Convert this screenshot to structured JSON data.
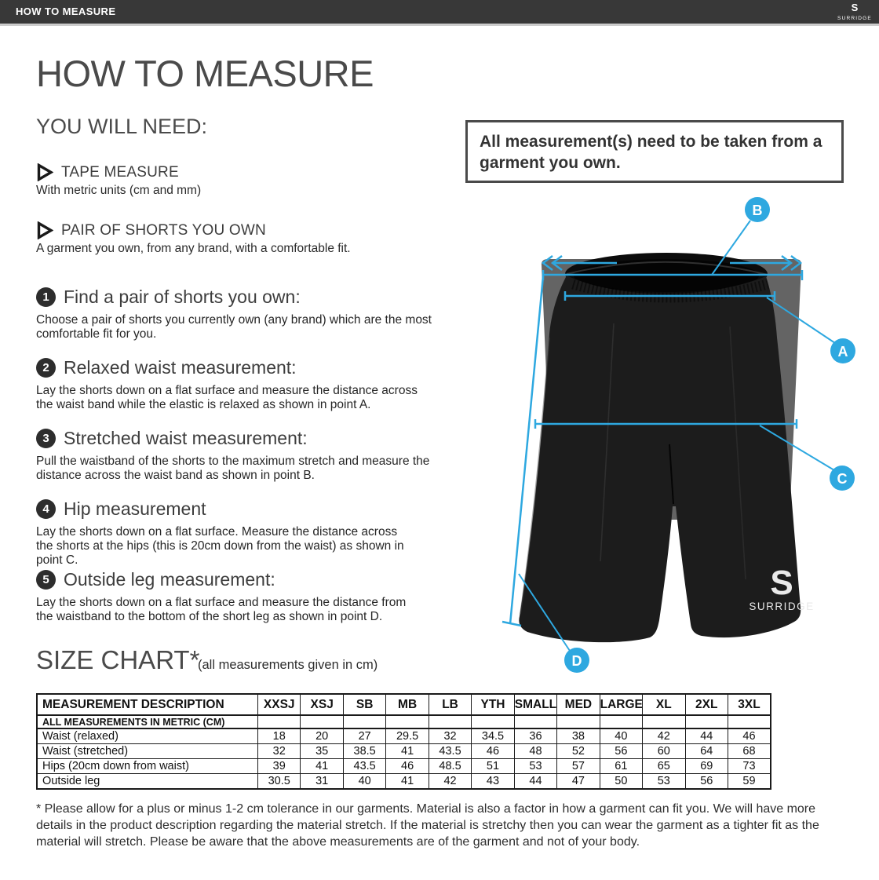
{
  "topbar": {
    "title": "HOW TO MEASURE",
    "brand": "SURRIDGE",
    "brand_mark": "S"
  },
  "page": {
    "title": "HOW TO MEASURE"
  },
  "you_will_need": {
    "heading": "YOU WILL NEED:",
    "items": [
      {
        "label": "TAPE MEASURE",
        "description": "With metric units (cm and mm)"
      },
      {
        "label": "PAIR OF SHORTS YOU OWN",
        "description": "A garment you own, from any brand, with a comfortable fit."
      }
    ]
  },
  "steps": [
    {
      "number": "1",
      "title": "Find a pair of shorts you own:",
      "description": "Choose a pair of shorts you currently own (any brand) which are the most comfortable fit for you."
    },
    {
      "number": "2",
      "title": "Relaxed waist measurement:",
      "description": "Lay the shorts down on a flat surface and measure the distance across the waist band while the elastic is relaxed as shown in point A."
    },
    {
      "number": "3",
      "title": "Stretched waist measurement:",
      "description": "Pull the waistband of the shorts to the maximum stretch and measure the distance across the waist band as shown in point B."
    },
    {
      "number": "4",
      "title": "Hip measurement",
      "description": "Lay the shorts down on a flat surface. Measure the distance across the shorts at the hips (this is 20cm down from the waist)  as shown in point C."
    },
    {
      "number": "5",
      "title": "Outside leg measurement:",
      "description": "Lay the shorts down on a flat surface and measure the distance from the waistband to the bottom of the short leg as shown in point D."
    }
  ],
  "notice": {
    "text": "All measurement(s) need to be taken from a garment you own."
  },
  "diagram": {
    "labels": [
      "A",
      "B",
      "C",
      "D"
    ],
    "garment_mark": "S",
    "garment_logo": "SURRIDGE",
    "accent_color": "#2ea8e0"
  },
  "size_chart": {
    "heading": "SIZE CHART*",
    "subheading": "(all measurements given in cm)",
    "metric_note": "ALL MEASUREMENTS IN METRIC (CM)",
    "columns": [
      "MEASUREMENT DESCRIPTION",
      "XXSJ",
      "XSJ",
      "SB",
      "MB",
      "LB",
      "YTH",
      "SMALL",
      "MED",
      "LARGE",
      "XL",
      "2XL",
      "3XL"
    ],
    "rows": [
      {
        "label": "Waist (relaxed)",
        "values": [
          "18",
          "20",
          "27",
          "29.5",
          "32",
          "34.5",
          "36",
          "38",
          "40",
          "42",
          "44",
          "46"
        ]
      },
      {
        "label": "Waist (stretched)",
        "values": [
          "32",
          "35",
          "38.5",
          "41",
          "43.5",
          "46",
          "48",
          "52",
          "56",
          "60",
          "64",
          "68"
        ]
      },
      {
        "label": "Hips (20cm down from waist)",
        "values": [
          "39",
          "41",
          "43.5",
          "46",
          "48.5",
          "51",
          "53",
          "57",
          "61",
          "65",
          "69",
          "73"
        ]
      },
      {
        "label": "Outside leg",
        "values": [
          "30.5",
          "31",
          "40",
          "41",
          "42",
          "43",
          "44",
          "47",
          "50",
          "53",
          "56",
          "59"
        ]
      }
    ]
  },
  "footnote": "* Please allow for a plus or minus 1-2 cm tolerance in our garments. Material is also a factor in how a garment can fit you. We will have more details in the product description regarding the material stretch.  If the material is stretchy then you can wear the garment as a tighter fit as the material will stretch.  Please be aware that the above measurements are of the garment and not of your body."
}
